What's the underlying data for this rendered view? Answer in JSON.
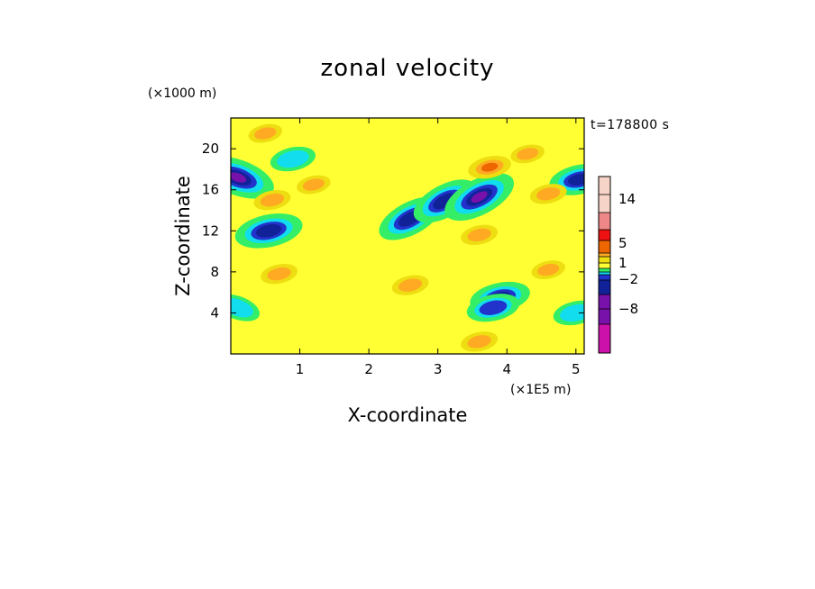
{
  "chart_data": {
    "type": "heatmap",
    "title": "zonal velocity",
    "xlabel": "X-coordinate",
    "ylabel": "Z-coordinate",
    "x_unit": "(×1E5 m)",
    "y_unit": "(×1000 m)",
    "time_label": "t=178800 s",
    "x_ticks": [
      "1",
      "2",
      "3",
      "4",
      "5"
    ],
    "y_ticks": [
      "4",
      "8",
      "12",
      "16",
      "20"
    ],
    "xlim": [
      0,
      5.12
    ],
    "ylim": [
      0,
      23
    ],
    "colorbar": {
      "tick_labels": [
        "14",
        "5",
        "1",
        "−2",
        "−8"
      ],
      "tick_values": [
        14,
        5,
        1,
        -2,
        -8
      ]
    },
    "colors": {
      "level_colors_high_to_low": [
        "#f7d4c8",
        "#ee8888",
        "#ee1111",
        "#ee6600",
        "#ffaa22",
        "#eedd11",
        "#ffff33",
        "#33ee66",
        "#11ddee",
        "#2233cc",
        "#112299",
        "#7711aa",
        "#cc11aa",
        "#ee33cc"
      ],
      "background_mode": "#ffff33"
    },
    "field_features": [
      {
        "x": 0.1,
        "z": 17.2,
        "value": -6
      },
      {
        "x": 0.55,
        "z": 12.0,
        "value": -5
      },
      {
        "x": 2.6,
        "z": 13.2,
        "value": -5
      },
      {
        "x": 3.1,
        "z": 14.9,
        "value": -5
      },
      {
        "x": 3.6,
        "z": 15.3,
        "value": -6
      },
      {
        "x": 5.05,
        "z": 17.0,
        "value": -4
      },
      {
        "x": 3.9,
        "z": 5.5,
        "value": -4
      },
      {
        "x": 3.8,
        "z": 4.5,
        "value": -3
      },
      {
        "x": 0.1,
        "z": 4.5,
        "value": -2
      },
      {
        "x": 5.0,
        "z": 4.0,
        "value": -2
      },
      {
        "x": 0.9,
        "z": 19.0,
        "value": -2
      },
      {
        "x": 3.75,
        "z": 18.2,
        "value": 3
      },
      {
        "x": 0.7,
        "z": 7.8,
        "value": 2
      },
      {
        "x": 3.6,
        "z": 11.6,
        "value": 2
      },
      {
        "x": 4.6,
        "z": 15.6,
        "value": 2
      },
      {
        "x": 2.6,
        "z": 6.7,
        "value": 2
      },
      {
        "x": 4.6,
        "z": 8.2,
        "value": 1.5
      },
      {
        "x": 1.2,
        "z": 16.5,
        "value": 1.5
      },
      {
        "x": 0.5,
        "z": 21.5,
        "value": 1.5
      },
      {
        "x": 0.6,
        "z": 15.0,
        "value": 2
      },
      {
        "x": 3.6,
        "z": 1.2,
        "value": 2
      },
      {
        "x": 4.3,
        "z": 19.5,
        "value": 1.5
      }
    ]
  }
}
